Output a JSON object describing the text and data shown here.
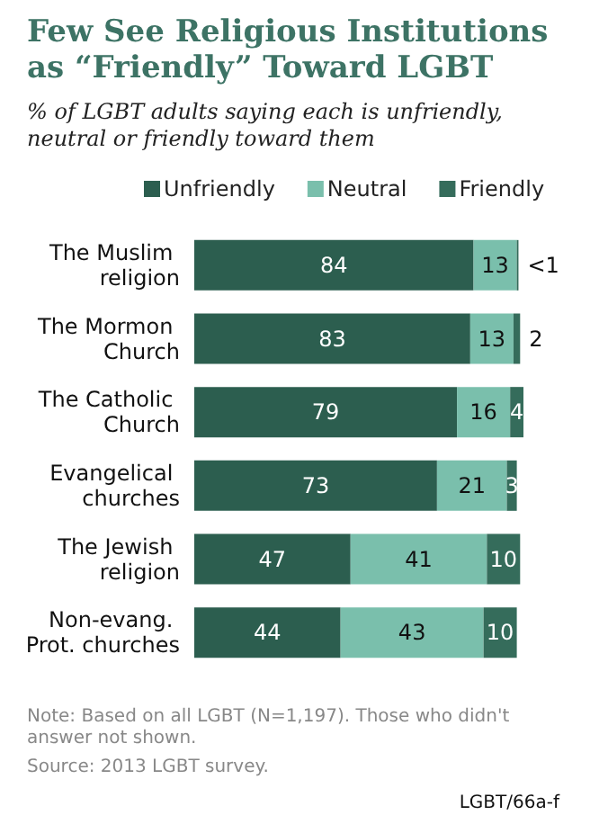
{
  "chart_data": {
    "type": "bar",
    "orientation": "horizontal",
    "stacked": true,
    "title": "Few See Religious Institutions as “Friendly” Toward LGBT",
    "subtitle": "% of LGBT adults saying each is unfriendly, neutral or friendly toward them",
    "categories": [
      "The Muslim religion",
      "The Mormon Church",
      "The Catholic Church",
      "Evangelical churches",
      "The Jewish religion",
      "Non-evang. Prot. churches"
    ],
    "series": [
      {
        "name": "Unfriendly",
        "color": "#2c5e4f",
        "values": [
          84,
          83,
          79,
          73,
          47,
          44
        ],
        "value_labels": [
          "84",
          "83",
          "79",
          "73",
          "47",
          "44"
        ]
      },
      {
        "name": "Neutral",
        "color": "#7abfac",
        "values": [
          13,
          13,
          16,
          21,
          41,
          43
        ],
        "value_labels": [
          "13",
          "13",
          "16",
          "21",
          "41",
          "43"
        ]
      },
      {
        "name": "Friendly",
        "color": "#356c5b",
        "values": [
          0.5,
          2,
          4,
          3,
          10,
          10
        ],
        "value_labels": [
          "<1",
          "2",
          "4",
          "3",
          "10",
          "10"
        ]
      }
    ],
    "legend": "top",
    "annotations": [
      "Note: Based on all LGBT (N=1,197). Those who didn't answer not shown.",
      "Source: 2013 LGBT survey.",
      "LGBT/66a-f"
    ]
  }
}
